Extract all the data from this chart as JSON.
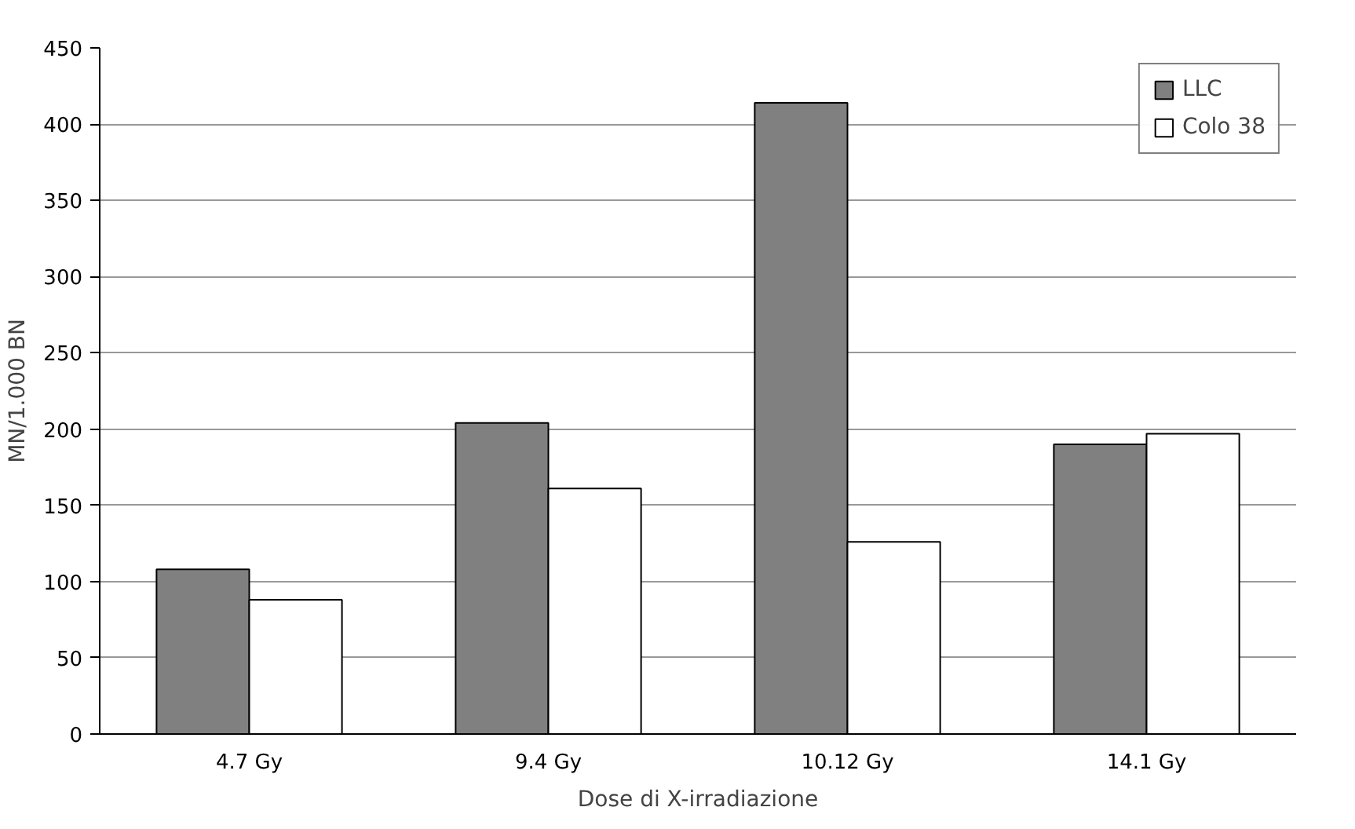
{
  "chart_data": {
    "type": "bar",
    "xlabel": "Dose di X-irradiazione",
    "ylabel": "MN/1.000 BN",
    "categories": [
      "4.7 Gy",
      "9.4 Gy",
      "10.12 Gy",
      "14.1 Gy"
    ],
    "series": [
      {
        "name": "LLC",
        "color": "#808080",
        "values": [
          108,
          204,
          414,
          190
        ]
      },
      {
        "name": "Colo 38",
        "color": "#ffffff",
        "values": [
          88,
          161,
          126,
          197
        ]
      }
    ],
    "ylim": [
      0,
      450
    ],
    "yticks": [
      0,
      50,
      100,
      150,
      200,
      250,
      300,
      350,
      400,
      450
    ],
    "grid": "y",
    "legend": "top right"
  }
}
